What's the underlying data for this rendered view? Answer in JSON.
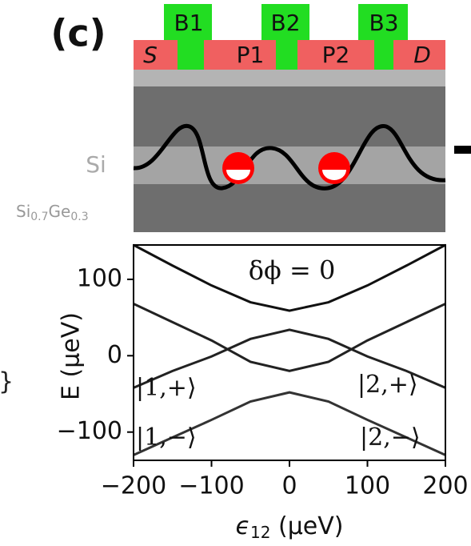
{
  "schematic": {
    "panel_label": "(c)",
    "gates": [
      "B1",
      "B2",
      "B3"
    ],
    "contacts": [
      "S",
      "P1",
      "P2",
      "D"
    ],
    "layer_si": "Si",
    "layer_sige": [
      "Si",
      "0.7",
      "Ge",
      "0.3"
    ],
    "edge_fragment": "}"
  },
  "chart_data": {
    "type": "line",
    "annotation": "δϕ = 0",
    "state_labels": [
      "|1,+⟩",
      "|2,+⟩",
      "|1,−⟩",
      "|2,−⟩"
    ],
    "ylabel": "E (μeV)",
    "xlabel": [
      "ϵ",
      "12",
      " (μeV)"
    ],
    "x": [
      -200,
      -150,
      -100,
      -50,
      0,
      50,
      100,
      150,
      200
    ],
    "series": [
      {
        "color": "#111111",
        "values": [
          145,
          118,
          92,
          70,
          59,
          70,
          92,
          118,
          145
        ]
      },
      {
        "color": "#222222",
        "values": [
          -42,
          -20,
          -1,
          22,
          34,
          22,
          -1,
          -20,
          -42
        ]
      },
      {
        "color": "#222222",
        "values": [
          68,
          44,
          20,
          -8,
          -20,
          -8,
          20,
          44,
          68
        ]
      },
      {
        "color": "#333333",
        "values": [
          -130,
          -107,
          -84,
          -60,
          -48,
          -60,
          -84,
          -107,
          -130
        ]
      }
    ],
    "xlim": [
      -200,
      200
    ],
    "ylim": [
      -137,
      145
    ],
    "xticks": [
      {
        "value": -200,
        "label": "−200"
      },
      {
        "value": -100,
        "label": "−100"
      },
      0,
      100,
      200
    ],
    "yticks": [
      {
        "value": -100,
        "label": "−100"
      },
      0,
      100
    ]
  }
}
